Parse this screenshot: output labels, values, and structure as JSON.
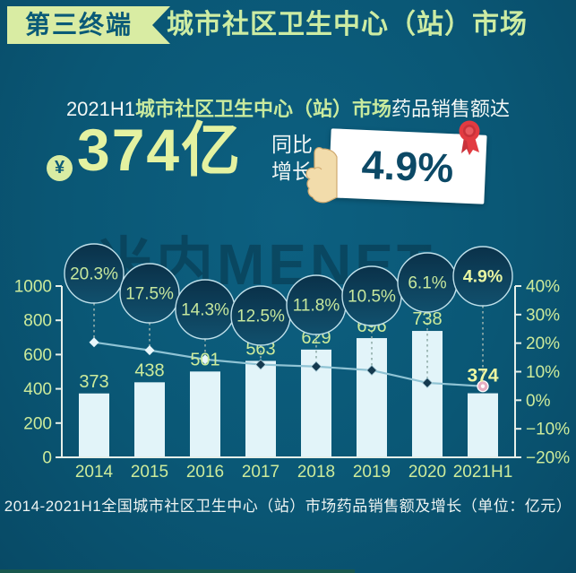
{
  "header": {
    "badge": "第三终端",
    "title": "城市社区卫生中心（站）市场"
  },
  "highlight": {
    "subtitle_prefix": "2021H1",
    "subtitle_market": "城市社区卫生中心（站）市场",
    "subtitle_suffix": "药品销售额达",
    "currency_symbol": "¥",
    "amount": "374亿",
    "yoy_label_line1": "同比",
    "yoy_label_line2": "增长",
    "yoy_value": "4.9%"
  },
  "watermark": "米内MENET",
  "caption": "2014-2021H1全国城市社区卫生中心（站）市场药品销售额及增长（单位：亿元）",
  "colors": {
    "background": "#0a5775",
    "badge_bg": "#d9eca3",
    "accent_green": "#cdeb9b",
    "amount_yellow": "#e4f2a1",
    "bar": "#e2f4f9",
    "line": "#8fc3d4",
    "bubble_fill_top": "#0a3149",
    "bubble_fill_bottom": "#11506d",
    "bubble_stroke": "#bfe0ea",
    "axis": "#e6efe9",
    "card_text": "#0c4966",
    "rosette_red": "#e23b41",
    "hand_tan": "#f2dcab",
    "highlight_marker_pink": "#e8aec2"
  },
  "chart_data": {
    "type": "bar+line",
    "categories": [
      "2014",
      "2015",
      "2016",
      "2017",
      "2018",
      "2019",
      "2020",
      "2021H1"
    ],
    "series": [
      {
        "name": "药品销售额（亿元）",
        "type": "bar",
        "values": [
          373,
          438,
          501,
          563,
          629,
          696,
          738,
          374
        ]
      },
      {
        "name": "同比增长",
        "type": "line",
        "unit": "%",
        "values": [
          20.3,
          17.5,
          14.3,
          12.5,
          11.8,
          10.5,
          6.1,
          4.9
        ]
      }
    ],
    "left_axis": {
      "range": [
        0,
        1000
      ],
      "tick_values": [
        0,
        200,
        400,
        600,
        800,
        1000
      ],
      "tick_labels": [
        "0",
        "200",
        "400",
        "600",
        "800",
        "1000"
      ]
    },
    "right_axis": {
      "range": [
        -20,
        40
      ],
      "tick_values": [
        -20,
        -10,
        0,
        10,
        20,
        30,
        40
      ],
      "tick_labels": [
        "−20%",
        "−10%",
        "0%",
        "10%",
        "20%",
        "30%",
        "40%"
      ]
    },
    "grid": false,
    "legend": "none",
    "highlighted_category": "2021H1",
    "title": "2014-2021H1全国城市社区卫生中心（站）市场药品销售额及增长（单位：亿元）"
  }
}
